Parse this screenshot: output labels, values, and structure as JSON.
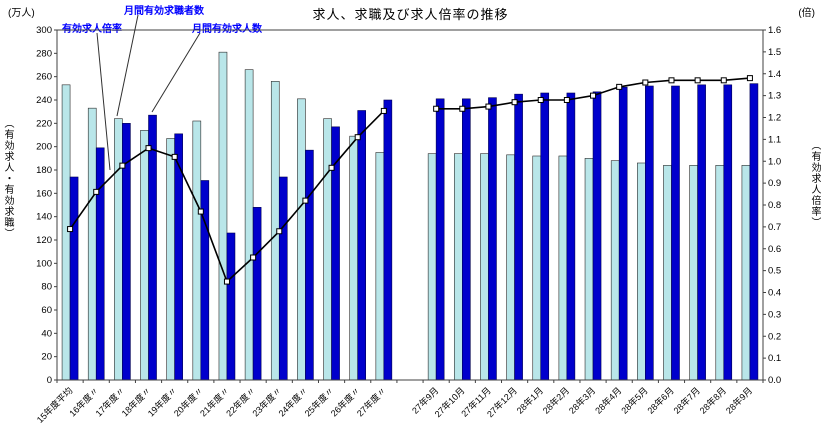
{
  "chart_data": {
    "type": "bar+line",
    "title": "求人、求職及び求人倍率の推移",
    "left_axis": {
      "unit": "(万人)",
      "label": "（有効求人・有効求職）",
      "min": 0,
      "max": 300,
      "step": 20
    },
    "right_axis": {
      "unit": "(倍)",
      "label": "（有効求人倍率）",
      "min": 0,
      "max": 1.6,
      "step": 0.1
    },
    "grid": false,
    "legend_position": "annotations-top-left",
    "gap_after_index": 12,
    "categories": [
      "15年度平均",
      "16年度〃",
      "17年度〃",
      "18年度〃",
      "19年度〃",
      "20年度〃",
      "21年度〃",
      "22年度〃",
      "23年度〃",
      "24年度〃",
      "25年度〃",
      "26年度〃",
      "27年度〃",
      "27年9月",
      "27年10月",
      "27年11月",
      "27年12月",
      "28年1月",
      "28年2月",
      "28年3月",
      "28年4月",
      "28年5月",
      "28年6月",
      "28年7月",
      "28年8月",
      "28年9月"
    ],
    "series": [
      {
        "name": "月間有効求職者数",
        "type": "bar",
        "axis": "left",
        "color": "#b9e6e9",
        "values": [
          253,
          233,
          224,
          214,
          207,
          222,
          281,
          266,
          256,
          241,
          224,
          209,
          195,
          194,
          194,
          194,
          193,
          192,
          192,
          190,
          188,
          186,
          184,
          184,
          184,
          184
        ]
      },
      {
        "name": "月間有効求人数",
        "type": "bar",
        "axis": "left",
        "color": "#0000cc",
        "values": [
          174,
          199,
          220,
          227,
          211,
          171,
          126,
          148,
          174,
          197,
          217,
          231,
          240,
          241,
          241,
          242,
          245,
          246,
          246,
          247,
          251,
          252,
          252,
          253,
          253,
          254
        ]
      },
      {
        "name": "有効求人倍率",
        "type": "line",
        "axis": "right",
        "color": "#000000",
        "marker": "open-square",
        "values": [
          0.69,
          0.86,
          0.98,
          1.06,
          1.02,
          0.77,
          0.45,
          0.56,
          0.68,
          0.82,
          0.97,
          1.11,
          1.23,
          1.24,
          1.24,
          1.25,
          1.27,
          1.28,
          1.28,
          1.3,
          1.34,
          1.36,
          1.37,
          1.37,
          1.37,
          1.38
        ]
      }
    ]
  }
}
